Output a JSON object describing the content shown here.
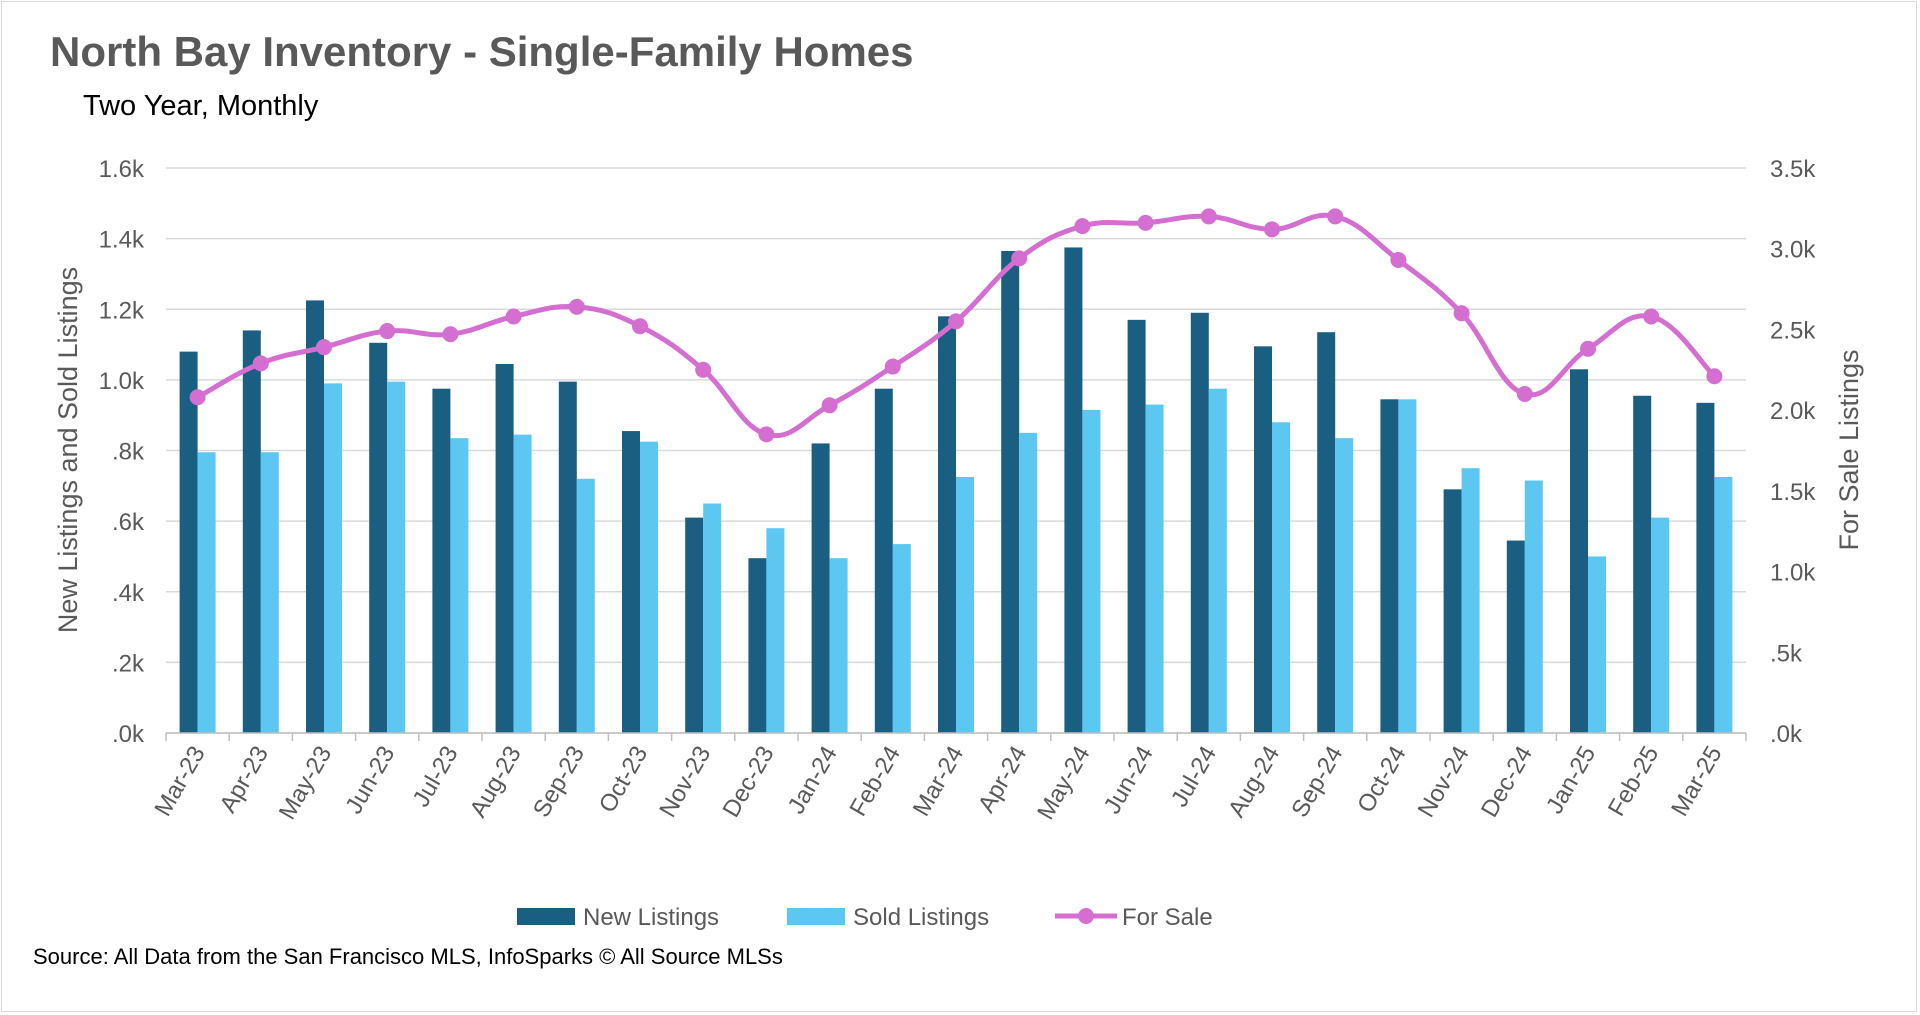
{
  "chart_data": {
    "type": "bar",
    "title": "North Bay Inventory - Single-Family Homes",
    "subtitle": "Two Year, Monthly",
    "source": "Source: All Data from the San Francisco MLS, InfoSparks © All Source MLSs",
    "categories": [
      "Mar-23",
      "Apr-23",
      "May-23",
      "Jun-23",
      "Jul-23",
      "Aug-23",
      "Sep-23",
      "Oct-23",
      "Nov-23",
      "Dec-23",
      "Jan-24",
      "Feb-24",
      "Mar-24",
      "Apr-24",
      "May-24",
      "Jun-24",
      "Jul-24",
      "Aug-24",
      "Sep-24",
      "Oct-24",
      "Nov-24",
      "Dec-24",
      "Jan-25",
      "Feb-25",
      "Mar-25"
    ],
    "series": [
      {
        "name": "New Listings",
        "type": "bar",
        "axis": "left",
        "color": "#1a5e82",
        "values": [
          1080,
          1140,
          1225,
          1105,
          975,
          1045,
          995,
          855,
          610,
          495,
          820,
          975,
          1180,
          1365,
          1375,
          1170,
          1190,
          1095,
          1135,
          945,
          690,
          545,
          1030,
          955,
          935
        ]
      },
      {
        "name": "Sold Listings",
        "type": "bar",
        "axis": "left",
        "color": "#5cc8f2",
        "values": [
          795,
          795,
          990,
          995,
          835,
          845,
          720,
          825,
          650,
          580,
          495,
          535,
          725,
          850,
          915,
          930,
          975,
          880,
          835,
          945,
          750,
          715,
          500,
          610,
          725
        ]
      },
      {
        "name": "For Sale",
        "type": "line",
        "axis": "right",
        "color": "#d46fd1",
        "values": [
          2080,
          2290,
          2390,
          2490,
          2470,
          2580,
          2640,
          2520,
          2250,
          1850,
          2030,
          2270,
          2550,
          2940,
          3140,
          3160,
          3200,
          3120,
          3200,
          2930,
          2600,
          2100,
          2380,
          2580,
          2210
        ]
      }
    ],
    "y_left": {
      "label": "New Listings and Sold Listings",
      "range": [
        0,
        1600
      ],
      "ticks": [
        0,
        200,
        400,
        600,
        800,
        1000,
        1200,
        1400,
        1600
      ],
      "tick_labels": [
        ".0k",
        ".2k",
        ".4k",
        ".6k",
        ".8k",
        "1.0k",
        "1.2k",
        "1.4k",
        "1.6k"
      ]
    },
    "y_right": {
      "label": "For Sale Listings",
      "range": [
        0,
        3500
      ],
      "ticks": [
        0,
        500,
        1000,
        1500,
        2000,
        2500,
        3000,
        3500
      ],
      "tick_labels": [
        ".0k",
        ".5k",
        "1.0k",
        "1.5k",
        "2.0k",
        "2.5k",
        "3.0k",
        "3.5k"
      ]
    },
    "grid": true,
    "legend": {
      "placement": "bottom",
      "items": [
        "New Listings",
        "Sold Listings",
        "For Sale"
      ]
    }
  }
}
